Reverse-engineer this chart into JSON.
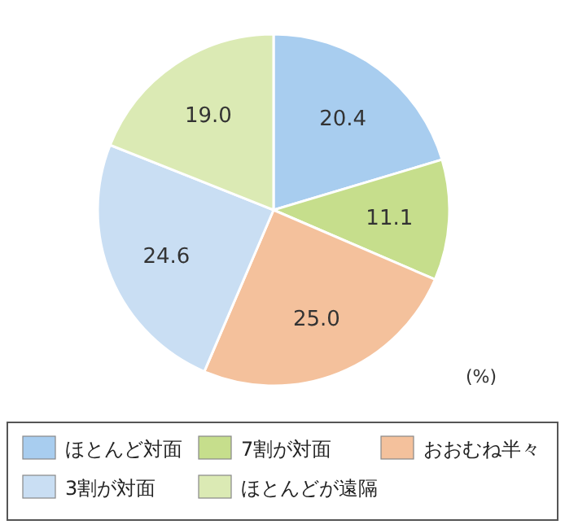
{
  "chart_data": {
    "type": "pie",
    "categories": [
      "ほとんど対面",
      "7割が対面",
      "おおむね半々",
      "3割が対面",
      "ほとんどが遠隔"
    ],
    "values": [
      20.4,
      11.1,
      25.0,
      24.6,
      19.0
    ],
    "colors": [
      "#a8cdef",
      "#c6de8c",
      "#f4c19c",
      "#c9def3",
      "#dbeab4"
    ],
    "value_labels": [
      "20.4",
      "11.1",
      "25.0",
      "24.6",
      "19.0"
    ],
    "legend": "bottom",
    "annotations": [
      "(%)"
    ]
  }
}
